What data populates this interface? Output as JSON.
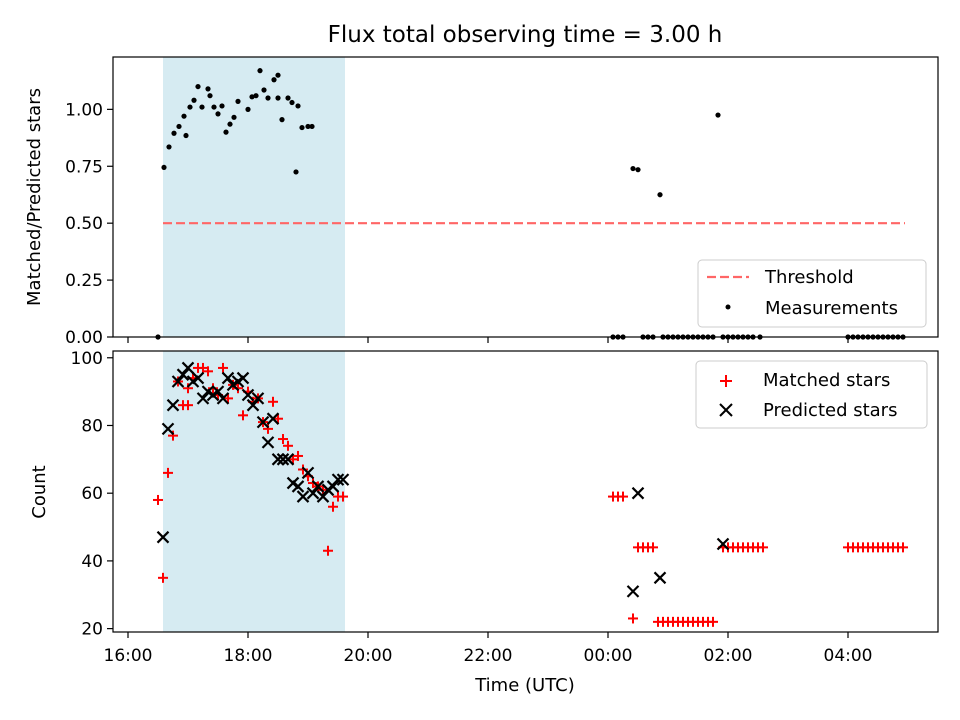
{
  "title": "Flux total observing time = 3.00 h",
  "colors": {
    "shade": "#add8e6",
    "threshold": "#ff6666",
    "measurement": "#000000",
    "matched": "#ff0000",
    "predicted": "#000000"
  },
  "chart_data": [
    {
      "type": "scatter",
      "ylabel": "Matched/Predicted stars",
      "ylim": [
        0,
        1.23
      ],
      "yticks": [
        0.0,
        0.25,
        0.5,
        0.75,
        1.0
      ],
      "ytick_labels": [
        "0.00",
        "0.25",
        "0.50",
        "0.75",
        "1.00"
      ],
      "shaded_span": [
        "16:35",
        "19:37"
      ],
      "threshold": {
        "name": "Threshold",
        "value": 0.5,
        "x_range": [
          "16:35",
          "04:57"
        ]
      },
      "legend": {
        "position": "lower-right",
        "entries": [
          "Threshold",
          "Measurements"
        ]
      },
      "series": [
        {
          "name": "Measurements",
          "points": [
            [
              "16:30",
              0.0
            ],
            [
              "16:36",
              0.745
            ],
            [
              "16:41",
              0.835
            ],
            [
              "16:46",
              0.895
            ],
            [
              "16:51",
              0.925
            ],
            [
              "16:56",
              0.97
            ],
            [
              "16:58",
              0.885
            ],
            [
              "17:02",
              1.01
            ],
            [
              "17:06",
              1.04
            ],
            [
              "17:10",
              1.1
            ],
            [
              "17:14",
              1.01
            ],
            [
              "17:20",
              1.09
            ],
            [
              "17:22",
              1.06
            ],
            [
              "17:26",
              1.01
            ],
            [
              "17:30",
              0.98
            ],
            [
              "17:34",
              1.015
            ],
            [
              "17:38",
              0.9
            ],
            [
              "17:42",
              0.935
            ],
            [
              "17:46",
              0.965
            ],
            [
              "17:50",
              1.035
            ],
            [
              "18:00",
              1.0
            ],
            [
              "18:04",
              1.055
            ],
            [
              "18:08",
              1.06
            ],
            [
              "18:12",
              1.17
            ],
            [
              "18:16",
              1.085
            ],
            [
              "18:20",
              1.05
            ],
            [
              "18:26",
              1.13
            ],
            [
              "18:30",
              1.15
            ],
            [
              "18:30",
              1.05
            ],
            [
              "18:34",
              0.955
            ],
            [
              "18:40",
              1.05
            ],
            [
              "18:44",
              1.03
            ],
            [
              "18:48",
              0.725
            ],
            [
              "18:50",
              1.015
            ],
            [
              "18:54",
              0.92
            ],
            [
              "19:00",
              0.925
            ],
            [
              "19:04",
              0.925
            ],
            [
              "00:05",
              0.0
            ],
            [
              "00:10",
              0.0
            ],
            [
              "00:15",
              0.0
            ],
            [
              "00:25",
              0.74
            ],
            [
              "00:30",
              0.735
            ],
            [
              "00:35",
              0.0
            ],
            [
              "00:40",
              0.0
            ],
            [
              "00:45",
              0.0
            ],
            [
              "00:52",
              0.625
            ],
            [
              "00:55",
              0.0
            ],
            [
              "01:00",
              0.0
            ],
            [
              "01:05",
              0.0
            ],
            [
              "01:10",
              0.0
            ],
            [
              "01:15",
              0.0
            ],
            [
              "01:20",
              0.0
            ],
            [
              "01:25",
              0.0
            ],
            [
              "01:30",
              0.0
            ],
            [
              "01:35",
              0.0
            ],
            [
              "01:40",
              0.0
            ],
            [
              "01:45",
              0.0
            ],
            [
              "01:50",
              0.975
            ],
            [
              "01:55",
              0.0
            ],
            [
              "02:00",
              0.0
            ],
            [
              "02:05",
              0.0
            ],
            [
              "02:10",
              0.0
            ],
            [
              "02:15",
              0.0
            ],
            [
              "02:20",
              0.0
            ],
            [
              "02:25",
              0.0
            ],
            [
              "02:32",
              0.0
            ],
            [
              "04:00",
              0.0
            ],
            [
              "04:05",
              0.0
            ],
            [
              "04:10",
              0.0
            ],
            [
              "04:15",
              0.0
            ],
            [
              "04:20",
              0.0
            ],
            [
              "04:25",
              0.0
            ],
            [
              "04:30",
              0.0
            ],
            [
              "04:35",
              0.0
            ],
            [
              "04:40",
              0.0
            ],
            [
              "04:45",
              0.0
            ],
            [
              "04:50",
              0.0
            ],
            [
              "04:55",
              0.0
            ]
          ]
        }
      ]
    },
    {
      "type": "scatter",
      "xlabel": "Time (UTC)",
      "ylabel": "Count",
      "ylim": [
        19,
        102
      ],
      "yticks": [
        20,
        40,
        60,
        80,
        100
      ],
      "xticks": [
        "16:00",
        "18:00",
        "20:00",
        "22:00",
        "00:00",
        "02:00",
        "04:00"
      ],
      "x_start": "15:45",
      "x_end": "05:30",
      "shaded_span": [
        "16:35",
        "19:37"
      ],
      "legend": {
        "position": "top-right",
        "entries": [
          "Matched stars",
          "Predicted stars"
        ]
      },
      "series": [
        {
          "name": "Matched stars",
          "points": [
            [
              "16:30",
              58
            ],
            [
              "16:35",
              35
            ],
            [
              "16:40",
              66
            ],
            [
              "16:45",
              77
            ],
            [
              "16:50",
              93
            ],
            [
              "16:55",
              86
            ],
            [
              "17:00",
              86
            ],
            [
              "17:00",
              91
            ],
            [
              "17:05",
              94
            ],
            [
              "17:10",
              97
            ],
            [
              "17:15",
              97
            ],
            [
              "17:20",
              96
            ],
            [
              "17:25",
              91
            ],
            [
              "17:30",
              89
            ],
            [
              "17:35",
              97
            ],
            [
              "17:40",
              88
            ],
            [
              "17:45",
              92
            ],
            [
              "17:50",
              91
            ],
            [
              "17:55",
              83
            ],
            [
              "18:00",
              90
            ],
            [
              "18:05",
              87
            ],
            [
              "18:10",
              88
            ],
            [
              "18:15",
              81
            ],
            [
              "18:20",
              79
            ],
            [
              "18:25",
              87
            ],
            [
              "18:30",
              82
            ],
            [
              "18:35",
              76
            ],
            [
              "18:40",
              74
            ],
            [
              "18:45",
              70
            ],
            [
              "18:50",
              71
            ],
            [
              "18:55",
              67
            ],
            [
              "19:00",
              65
            ],
            [
              "19:05",
              63
            ],
            [
              "19:10",
              62
            ],
            [
              "19:15",
              61
            ],
            [
              "19:20",
              43
            ],
            [
              "19:25",
              56
            ],
            [
              "19:30",
              59
            ],
            [
              "19:35",
              59
            ],
            [
              "00:05",
              59
            ],
            [
              "00:10",
              59
            ],
            [
              "00:15",
              59
            ],
            [
              "00:25",
              23
            ],
            [
              "00:30",
              44
            ],
            [
              "00:35",
              44
            ],
            [
              "00:40",
              44
            ],
            [
              "00:45",
              44
            ],
            [
              "00:50",
              22
            ],
            [
              "00:55",
              22
            ],
            [
              "01:00",
              22
            ],
            [
              "01:05",
              22
            ],
            [
              "01:10",
              22
            ],
            [
              "01:15",
              22
            ],
            [
              "01:20",
              22
            ],
            [
              "01:25",
              22
            ],
            [
              "01:30",
              22
            ],
            [
              "01:35",
              22
            ],
            [
              "01:40",
              22
            ],
            [
              "01:45",
              22
            ],
            [
              "01:55",
              44
            ],
            [
              "02:00",
              44
            ],
            [
              "02:05",
              44
            ],
            [
              "02:10",
              44
            ],
            [
              "02:15",
              44
            ],
            [
              "02:20",
              44
            ],
            [
              "02:25",
              44
            ],
            [
              "02:30",
              44
            ],
            [
              "02:35",
              44
            ],
            [
              "04:00",
              44
            ],
            [
              "04:05",
              44
            ],
            [
              "04:10",
              44
            ],
            [
              "04:15",
              44
            ],
            [
              "04:20",
              44
            ],
            [
              "04:25",
              44
            ],
            [
              "04:30",
              44
            ],
            [
              "04:35",
              44
            ],
            [
              "04:40",
              44
            ],
            [
              "04:45",
              44
            ],
            [
              "04:50",
              44
            ],
            [
              "04:55",
              44
            ]
          ]
        },
        {
          "name": "Predicted stars",
          "points": [
            [
              "16:35",
              47
            ],
            [
              "16:40",
              79
            ],
            [
              "16:45",
              86
            ],
            [
              "16:50",
              93
            ],
            [
              "16:55",
              95
            ],
            [
              "17:00",
              97
            ],
            [
              "17:05",
              93
            ],
            [
              "17:10",
              94
            ],
            [
              "17:15",
              88
            ],
            [
              "17:20",
              90
            ],
            [
              "17:25",
              89
            ],
            [
              "17:30",
              90
            ],
            [
              "17:35",
              88
            ],
            [
              "17:40",
              94
            ],
            [
              "17:45",
              92
            ],
            [
              "17:50",
              93
            ],
            [
              "17:55",
              94
            ],
            [
              "18:00",
              89
            ],
            [
              "18:05",
              86
            ],
            [
              "18:10",
              88
            ],
            [
              "18:15",
              81
            ],
            [
              "18:20",
              75
            ],
            [
              "18:25",
              82
            ],
            [
              "18:30",
              70
            ],
            [
              "18:35",
              70
            ],
            [
              "18:40",
              70
            ],
            [
              "18:45",
              63
            ],
            [
              "18:50",
              62
            ],
            [
              "18:55",
              59
            ],
            [
              "19:00",
              66
            ],
            [
              "19:05",
              60
            ],
            [
              "19:10",
              62
            ],
            [
              "19:15",
              59
            ],
            [
              "19:20",
              61
            ],
            [
              "19:25",
              62
            ],
            [
              "19:30",
              64
            ],
            [
              "19:35",
              64
            ],
            [
              "00:25",
              31
            ],
            [
              "00:30",
              60
            ],
            [
              "00:52",
              35
            ],
            [
              "01:55",
              45
            ]
          ]
        }
      ]
    }
  ]
}
